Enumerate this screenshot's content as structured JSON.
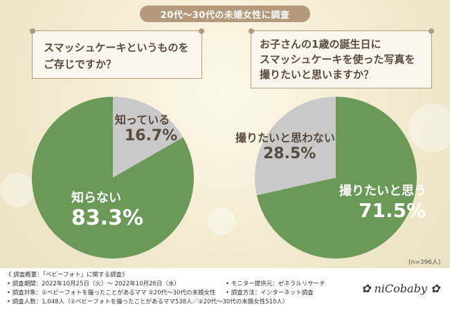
{
  "header": {
    "title": "20代〜30代の未婚女性に調査"
  },
  "chart_data": [
    {
      "type": "pie",
      "title": "スマッシュケーキというものを ご存じですか？",
      "title_lines": [
        "スマッシュケーキというものを",
        "ご存じですか？"
      ],
      "slices": [
        {
          "label": "知っている",
          "value": 16.7,
          "value_text": "16.7%",
          "color": "#c9c9c9"
        },
        {
          "label": "知らない",
          "value": 83.3,
          "value_text": "83.3%",
          "color": "#6b9a58"
        }
      ]
    },
    {
      "type": "pie",
      "title": "お子さんの1歳の誕生日に スマッシュケーキを使った写真を 撮りたいと思いますか？",
      "title_lines": [
        "お子さんの1歳の誕生日に",
        "スマッシュケーキを使った写真を",
        "撮りたいと思いますか？"
      ],
      "slices": [
        {
          "label": "撮りたいと思う",
          "value": 71.5,
          "value_text": "71.5%",
          "color": "#6b9a58"
        },
        {
          "label": "撮りたいと思わない",
          "value": 28.5,
          "value_text": "28.5%",
          "color": "#c9c9c9"
        }
      ]
    }
  ],
  "sample_note": "(n=396人)",
  "footer": {
    "title": "《 調査概要：「ベビーフォト」に関する調査》",
    "period": "• 調査期間：2022年10月25日（火）〜 2022年10月26日（水）",
    "target": "• 調査対象：①ベビーフォトを撮ったことがあるママ ②20代〜30代の未婚女性",
    "count": "• 調査人数：1,048人（①ベビーフォトを撮ったことがあるママ538人／②20代〜30代の未婚女性510人）",
    "provider": "• モニター提供元：ゼネラルリサーチ",
    "method": "• 調査方法：インターネット調査",
    "logo": "niCobaby"
  },
  "colors": {
    "accent": "#b49a7a",
    "green": "#6b9a58",
    "gray": "#c9c9c9"
  }
}
